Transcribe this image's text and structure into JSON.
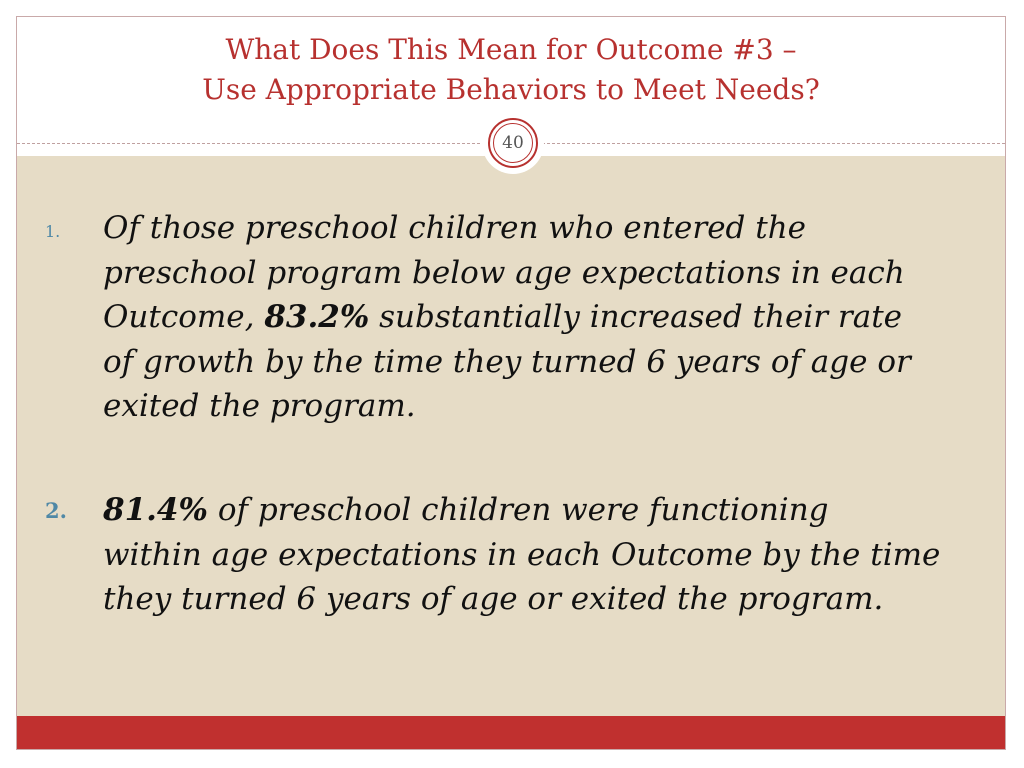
{
  "slide": {
    "title_line1": "What Does This Mean for Outcome #3 –",
    "title_line2": "Use Appropriate Behaviors to Meet Needs?",
    "page_number": "40"
  },
  "items": [
    {
      "marker": "1.",
      "line1": "Of those preschool children who entered the",
      "line2": "preschool program below age expectations in each",
      "line3_lead": "Outcome, ",
      "line3_stat": "83.2%",
      "line3_tail": " substantially increased their rate",
      "line4": "of growth by the time they turned 6 years of age or",
      "line5": "exited the program."
    },
    {
      "marker": "2.",
      "line1_stat": "81.4%",
      "line1_tail": " of preschool children were functioning",
      "line2": "within age expectations in each Outcome by the time",
      "line3": "they turned 6 years of age or exited the program."
    }
  ],
  "colors": {
    "accent": "#b7312f",
    "body_background": "#e6dcc6",
    "footer_bar": "#c0302f",
    "marker": "#4f88a6"
  }
}
